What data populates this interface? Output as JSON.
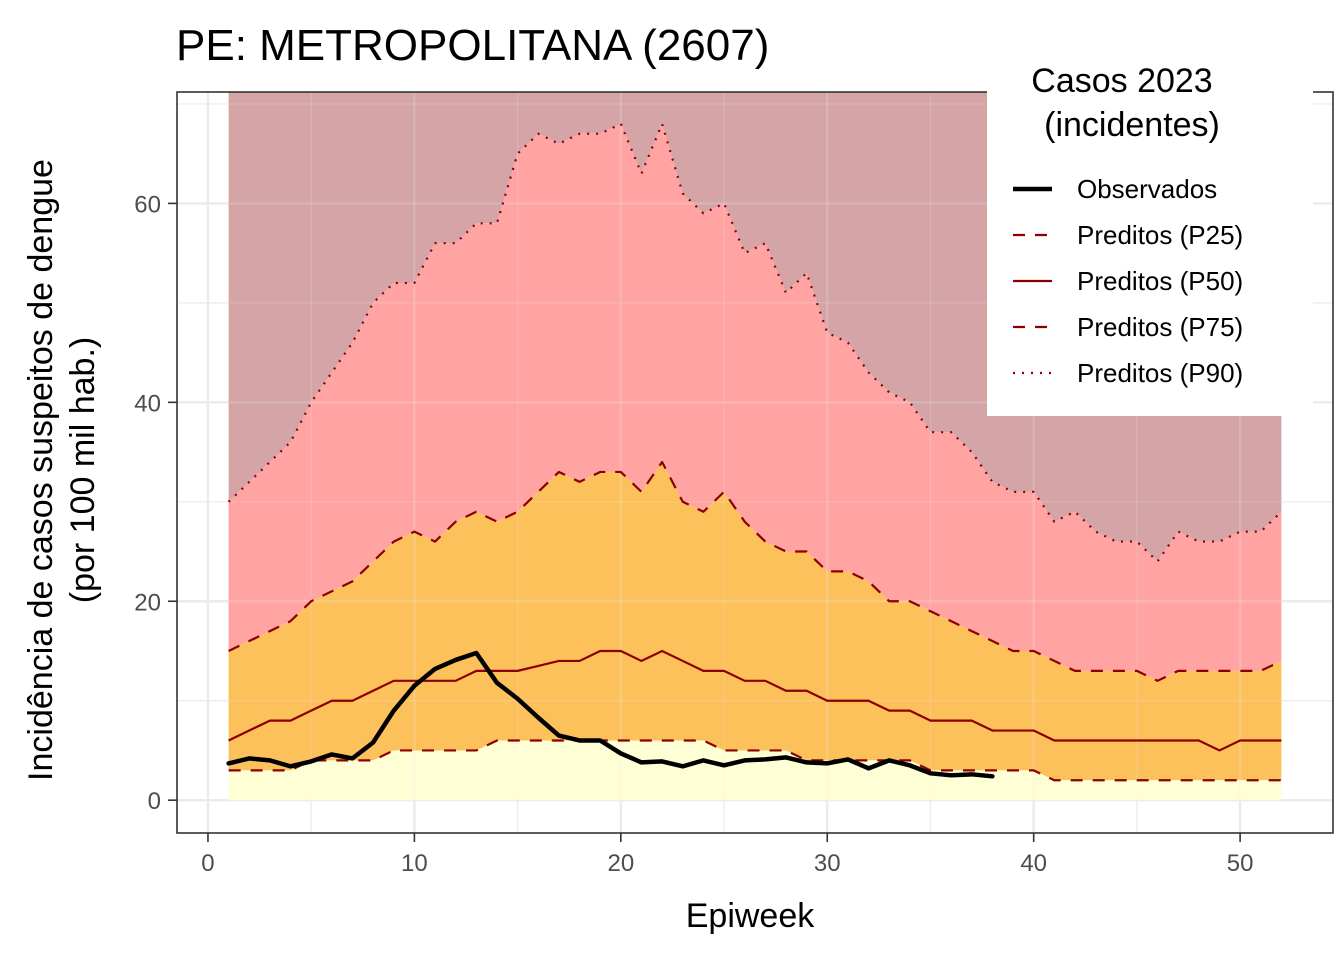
{
  "chart_data": {
    "type": "line",
    "title": "PE: METROPOLITANA (2607)",
    "xlabel": "Epiweek",
    "ylabel_line1": "Incidência de casos suspeitos de dengue",
    "ylabel_line2": "(por 100 mil hab.)",
    "xlim": [
      -1.5,
      54.5
    ],
    "ylim": [
      -3.3,
      71.2
    ],
    "x_ticks": [
      0,
      10,
      20,
      30,
      40,
      50
    ],
    "y_ticks": [
      0,
      20,
      40,
      60
    ],
    "grid": true,
    "legend": {
      "position": "top-right",
      "title_line1": "Casos 2023",
      "title_line2": "(incidentes)",
      "entries": [
        "Observados",
        "Preditos (P25)",
        "Preditos (P50)",
        "Preditos (P75)",
        "Preditos (P90)"
      ]
    },
    "colors": {
      "band_below_p25": "#ffffd6",
      "band_p25_p75": "#fdc15c",
      "band_p75_p90": "#ffa3a3",
      "band_above_p90": "#d4a4a6",
      "predicted_line": "#8b0000",
      "observed_line": "#000000"
    },
    "upper_envelope": 71.2,
    "x": [
      1,
      2,
      3,
      4,
      5,
      6,
      7,
      8,
      9,
      10,
      11,
      12,
      13,
      14,
      15,
      16,
      17,
      18,
      19,
      20,
      21,
      22,
      23,
      24,
      25,
      26,
      27,
      28,
      29,
      30,
      31,
      32,
      33,
      34,
      35,
      36,
      37,
      38,
      39,
      40,
      41,
      42,
      43,
      44,
      45,
      46,
      47,
      48,
      49,
      50,
      51,
      52
    ],
    "series": [
      {
        "name": "Preditos (P25)",
        "values": [
          3,
          3,
          3,
          3,
          4,
          4,
          4,
          4,
          5,
          5,
          5,
          5,
          5,
          6,
          6,
          6,
          6,
          6,
          6,
          6,
          6,
          6,
          6,
          6,
          5,
          5,
          5,
          5,
          4,
          4,
          4,
          4,
          4,
          4,
          3,
          3,
          3,
          3,
          3,
          3,
          2,
          2,
          2,
          2,
          2,
          2,
          2,
          2,
          2,
          2,
          2,
          2
        ]
      },
      {
        "name": "Preditos (P50)",
        "values": [
          6,
          7,
          8,
          8,
          9,
          10,
          10,
          11,
          12,
          12,
          12,
          12,
          13,
          13,
          13,
          13.5,
          14,
          14,
          15,
          15,
          14,
          15,
          14,
          13,
          13,
          12,
          12,
          11,
          11,
          10,
          10,
          10,
          9,
          9,
          8,
          8,
          8,
          7,
          7,
          7,
          6,
          6,
          6,
          6,
          6,
          6,
          6,
          6,
          5,
          6,
          6,
          6
        ]
      },
      {
        "name": "Preditos (P75)",
        "values": [
          15,
          16,
          17,
          18,
          20,
          21,
          22,
          24,
          26,
          27,
          26,
          28,
          29,
          28,
          29,
          31,
          33,
          32,
          33,
          33,
          31,
          34,
          30,
          29,
          31,
          28,
          26,
          25,
          25,
          23,
          23,
          22,
          20,
          20,
          19,
          18,
          17,
          16,
          15,
          15,
          14,
          13,
          13,
          13,
          13,
          12,
          13,
          13,
          13,
          13,
          13,
          14
        ]
      },
      {
        "name": "Preditos (P90)",
        "values": [
          30,
          32,
          34,
          36,
          40,
          43,
          46,
          50,
          52,
          52,
          56,
          56,
          58,
          58,
          65,
          67,
          66,
          67,
          67,
          68,
          63,
          68,
          61,
          59,
          60,
          55,
          56,
          51,
          53,
          47,
          46,
          43,
          41,
          40,
          37,
          37,
          35,
          32,
          31,
          31,
          28,
          29,
          27,
          26,
          26,
          24,
          27,
          26,
          26,
          27,
          27,
          29
        ]
      },
      {
        "name": "Observados",
        "x": [
          1,
          2,
          3,
          4,
          5,
          6,
          7,
          8,
          9,
          10,
          11,
          12,
          13,
          14,
          15,
          16,
          17,
          18,
          19,
          20,
          21,
          22,
          23,
          24,
          25,
          26,
          27,
          28,
          29,
          30,
          31,
          32,
          33,
          34,
          35,
          36,
          37,
          38
        ],
        "values": [
          3.7,
          4.2,
          4.0,
          3.4,
          3.9,
          4.6,
          4.2,
          5.8,
          9.0,
          11.5,
          13.2,
          14.1,
          14.8,
          11.8,
          10.2,
          8.3,
          6.5,
          6.0,
          6.0,
          4.7,
          3.8,
          3.9,
          3.4,
          4.0,
          3.5,
          4.0,
          4.1,
          4.3,
          3.8,
          3.7,
          4.1,
          3.2,
          4.0,
          3.5,
          2.7,
          2.5,
          2.6,
          2.4
        ]
      }
    ]
  }
}
